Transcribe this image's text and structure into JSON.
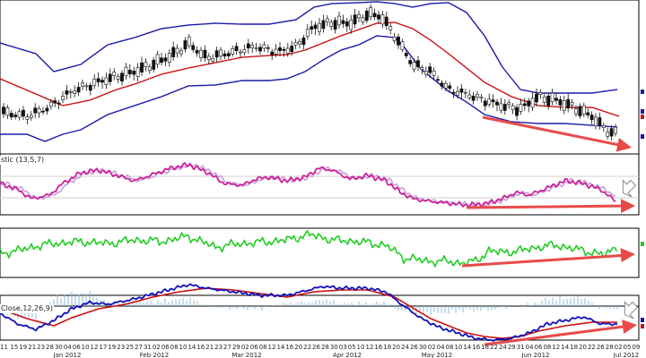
{
  "chart_data": [
    {
      "type": "candlestick",
      "panel": "price",
      "overlays": [
        "Bollinger upper",
        "Bollinger middle",
        "Bollinger lower"
      ],
      "colors": {
        "bands": "#1a1aa8",
        "middle": "#cc1111"
      },
      "note_arrow": "down"
    },
    {
      "type": "line",
      "panel": "stochastic",
      "label": "stic (13,5,7)",
      "series_colors": [
        "#cc2299",
        "#c9a0d8"
      ],
      "note_arrow": "up"
    },
    {
      "type": "line",
      "panel": "indicator",
      "label": "",
      "series_colors": [
        "#22cc22"
      ],
      "note_arrow": "up"
    },
    {
      "type": "line",
      "panel": "macd",
      "label": "Close,12,26,9)",
      "series_colors": [
        "#1111bb",
        "#cc1111",
        "#88bbdd"
      ],
      "note_arrow": "up"
    }
  ],
  "x_axis": {
    "day_ticks": [
      "15",
      "19",
      "21",
      "23",
      "28",
      "30",
      "04",
      "06",
      "10",
      "12",
      "17",
      "19",
      "23",
      "25",
      "27",
      "31",
      "02",
      "06",
      "08",
      "10",
      "14",
      "16",
      "21",
      "23",
      "27",
      "29",
      "02",
      "06",
      "08",
      "12",
      "14",
      "16",
      "20",
      "22",
      "26",
      "28",
      "30",
      "03",
      "05",
      "10",
      "12",
      "16",
      "18",
      "20",
      "24",
      "26",
      "30",
      "02",
      "04",
      "08",
      "10",
      "14",
      "16",
      "18",
      "22",
      "24",
      "29",
      "31",
      "04",
      "06",
      "08",
      "12",
      "14",
      "18",
      "20",
      "22",
      "26",
      "28",
      "02",
      "05",
      "09"
    ],
    "first_partial_tick": "11",
    "month_labels": [
      "Jan 2012",
      "Feb 2012",
      "Mar 2012",
      "Apr 2012",
      "May 2012",
      "Jun 2012",
      "Jul 2012"
    ]
  },
  "colors": {
    "arrow": "#e84a4a",
    "panel_border": "#000000",
    "grid": "#cfcfcf"
  }
}
